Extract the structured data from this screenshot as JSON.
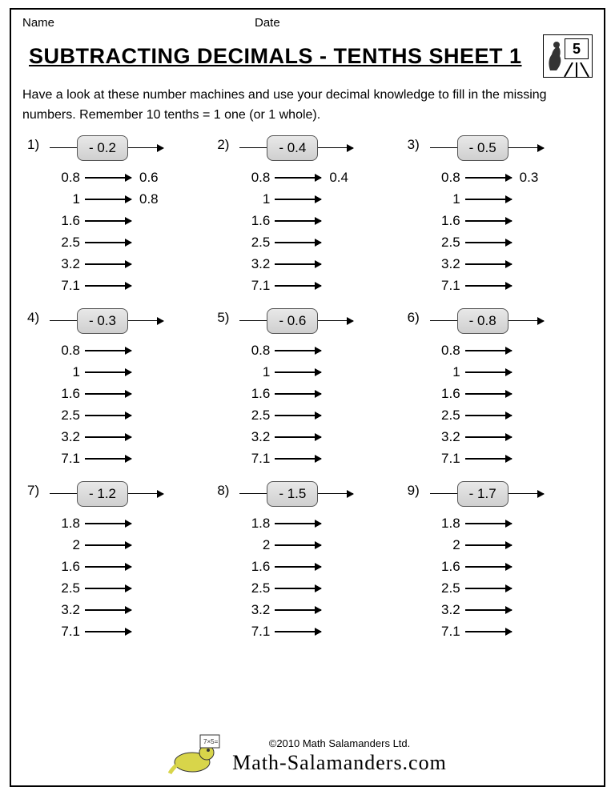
{
  "header": {
    "name_label": "Name",
    "date_label": "Date"
  },
  "title": "SUBTRACTING DECIMALS - TENTHS SHEET 1",
  "grade_badge": "5",
  "instructions": "Have a look at these number machines and use your decimal knowledge to fill in the missing numbers. Remember 10 tenths = 1 one (or 1 whole).",
  "problems": [
    {
      "num": "1)",
      "op": "- 0.2",
      "rows": [
        {
          "in": "0.8",
          "out": "0.6"
        },
        {
          "in": "1",
          "out": "0.8"
        },
        {
          "in": "1.6",
          "out": ""
        },
        {
          "in": "2.5",
          "out": ""
        },
        {
          "in": "3.2",
          "out": ""
        },
        {
          "in": "7.1",
          "out": ""
        }
      ]
    },
    {
      "num": "2)",
      "op": "- 0.4",
      "rows": [
        {
          "in": "0.8",
          "out": "0.4"
        },
        {
          "in": "1",
          "out": ""
        },
        {
          "in": "1.6",
          "out": ""
        },
        {
          "in": "2.5",
          "out": ""
        },
        {
          "in": "3.2",
          "out": ""
        },
        {
          "in": "7.1",
          "out": ""
        }
      ]
    },
    {
      "num": "3)",
      "op": "- 0.5",
      "rows": [
        {
          "in": "0.8",
          "out": "0.3"
        },
        {
          "in": "1",
          "out": ""
        },
        {
          "in": "1.6",
          "out": ""
        },
        {
          "in": "2.5",
          "out": ""
        },
        {
          "in": "3.2",
          "out": ""
        },
        {
          "in": "7.1",
          "out": ""
        }
      ]
    },
    {
      "num": "4)",
      "op": "- 0.3",
      "rows": [
        {
          "in": "0.8",
          "out": ""
        },
        {
          "in": "1",
          "out": ""
        },
        {
          "in": "1.6",
          "out": ""
        },
        {
          "in": "2.5",
          "out": ""
        },
        {
          "in": "3.2",
          "out": ""
        },
        {
          "in": "7.1",
          "out": ""
        }
      ]
    },
    {
      "num": "5)",
      "op": "- 0.6",
      "rows": [
        {
          "in": "0.8",
          "out": ""
        },
        {
          "in": "1",
          "out": ""
        },
        {
          "in": "1.6",
          "out": ""
        },
        {
          "in": "2.5",
          "out": ""
        },
        {
          "in": "3.2",
          "out": ""
        },
        {
          "in": "7.1",
          "out": ""
        }
      ]
    },
    {
      "num": "6)",
      "op": "- 0.8",
      "rows": [
        {
          "in": "0.8",
          "out": ""
        },
        {
          "in": "1",
          "out": ""
        },
        {
          "in": "1.6",
          "out": ""
        },
        {
          "in": "2.5",
          "out": ""
        },
        {
          "in": "3.2",
          "out": ""
        },
        {
          "in": "7.1",
          "out": ""
        }
      ]
    },
    {
      "num": "7)",
      "op": "- 1.2",
      "rows": [
        {
          "in": "1.8",
          "out": ""
        },
        {
          "in": "2",
          "out": ""
        },
        {
          "in": "1.6",
          "out": ""
        },
        {
          "in": "2.5",
          "out": ""
        },
        {
          "in": "3.2",
          "out": ""
        },
        {
          "in": "7.1",
          "out": ""
        }
      ]
    },
    {
      "num": "8)",
      "op": "- 1.5",
      "rows": [
        {
          "in": "1.8",
          "out": ""
        },
        {
          "in": "2",
          "out": ""
        },
        {
          "in": "1.6",
          "out": ""
        },
        {
          "in": "2.5",
          "out": ""
        },
        {
          "in": "3.2",
          "out": ""
        },
        {
          "in": "7.1",
          "out": ""
        }
      ]
    },
    {
      "num": "9)",
      "op": "- 1.7",
      "rows": [
        {
          "in": "1.8",
          "out": ""
        },
        {
          "in": "2",
          "out": ""
        },
        {
          "in": "1.6",
          "out": ""
        },
        {
          "in": "2.5",
          "out": ""
        },
        {
          "in": "3.2",
          "out": ""
        },
        {
          "in": "7.1",
          "out": ""
        }
      ]
    }
  ],
  "footer": {
    "copyright": "©2010 Math Salamanders Ltd.",
    "brand": "Math-Salamanders.com"
  },
  "colors": {
    "border": "#000000",
    "box_bg_top": "#e8e8e8",
    "box_bg_bottom": "#cfcfcf",
    "salamander": "#d8d54a"
  }
}
